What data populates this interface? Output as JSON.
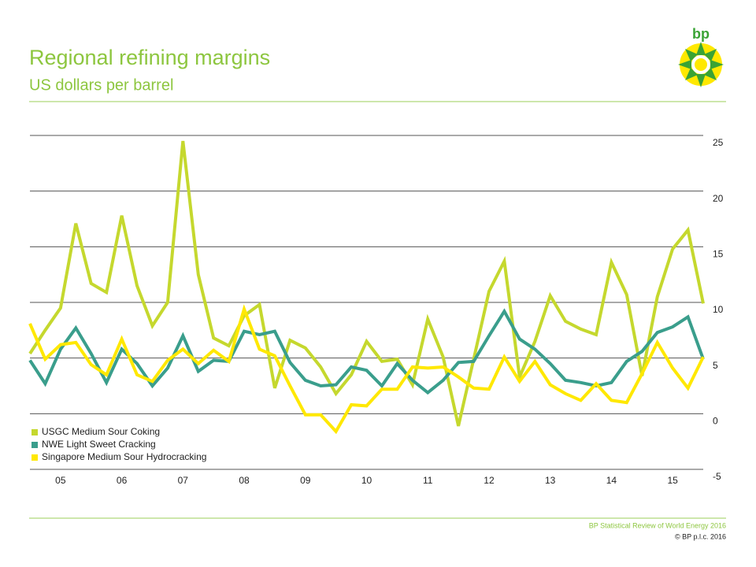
{
  "chart_data": {
    "type": "line",
    "title": "Regional refining margins",
    "subtitle": "US dollars per barrel",
    "logo_text": "bp",
    "source": "BP Statistical Review of World Energy 2016",
    "copyright": "© BP p.l.c. 2016",
    "categories": [
      null,
      null,
      "05",
      null,
      null,
      null,
      "06",
      null,
      null,
      null,
      "07",
      null,
      null,
      null,
      "08",
      null,
      null,
      null,
      "09",
      null,
      null,
      null,
      "10",
      null,
      null,
      null,
      "11",
      null,
      null,
      null,
      "12",
      null,
      null,
      null,
      "13",
      null,
      null,
      null,
      "14",
      null,
      null,
      null,
      "15",
      null,
      null
    ],
    "series": [
      {
        "name": "USGC Medium Sour Coking",
        "color": "#c5d82e",
        "values": [
          5.4,
          7.5,
          9.5,
          17.1,
          11.7,
          10.9,
          17.8,
          11.5,
          7.9,
          10.0,
          24.5,
          12.5,
          6.8,
          6.1,
          8.8,
          9.8,
          2.3,
          6.6,
          5.9,
          4.2,
          1.8,
          3.5,
          6.5,
          4.7,
          4.9,
          2.6,
          8.5,
          5.1,
          -1.1,
          4.9,
          11.0,
          13.7,
          3.3,
          6.5,
          10.6,
          8.3,
          7.6,
          7.1,
          13.6,
          10.7,
          3.4,
          10.5,
          14.8,
          16.5,
          9.9
        ]
      },
      {
        "name": "NWE Light Sweet Cracking",
        "color": "#3a9e8c",
        "values": [
          4.8,
          2.7,
          5.8,
          7.7,
          5.4,
          2.8,
          5.8,
          4.5,
          2.5,
          4.1,
          7.0,
          3.8,
          4.8,
          4.7,
          7.4,
          7.1,
          7.4,
          4.6,
          3.0,
          2.5,
          2.6,
          4.2,
          3.9,
          2.5,
          4.5,
          3.0,
          1.9,
          3.0,
          4.6,
          4.7,
          7.0,
          9.2,
          6.7,
          5.8,
          4.5,
          3.0,
          2.8,
          2.5,
          2.8,
          4.7,
          5.6,
          7.3,
          7.8,
          8.7,
          4.9
        ]
      },
      {
        "name": "Singapore Medium Sour Hydrocracking",
        "color": "#ffe800",
        "values": [
          8.1,
          4.9,
          6.2,
          6.4,
          4.4,
          3.5,
          6.7,
          3.5,
          2.9,
          4.8,
          5.8,
          4.5,
          5.7,
          4.7,
          9.4,
          5.8,
          5.2,
          2.5,
          -0.1,
          -0.1,
          -1.6,
          0.8,
          0.7,
          2.2,
          2.2,
          4.2,
          4.1,
          4.2,
          3.3,
          2.3,
          2.2,
          5.1,
          2.9,
          4.7,
          2.6,
          1.8,
          1.2,
          2.7,
          1.2,
          1.0,
          3.6,
          6.4,
          4.1,
          2.3,
          5.1
        ]
      }
    ],
    "ylim": [
      -5,
      25
    ],
    "yticks": [
      25,
      20,
      15,
      10,
      5,
      0,
      -5
    ],
    "grid": true,
    "legend": "lower left"
  }
}
